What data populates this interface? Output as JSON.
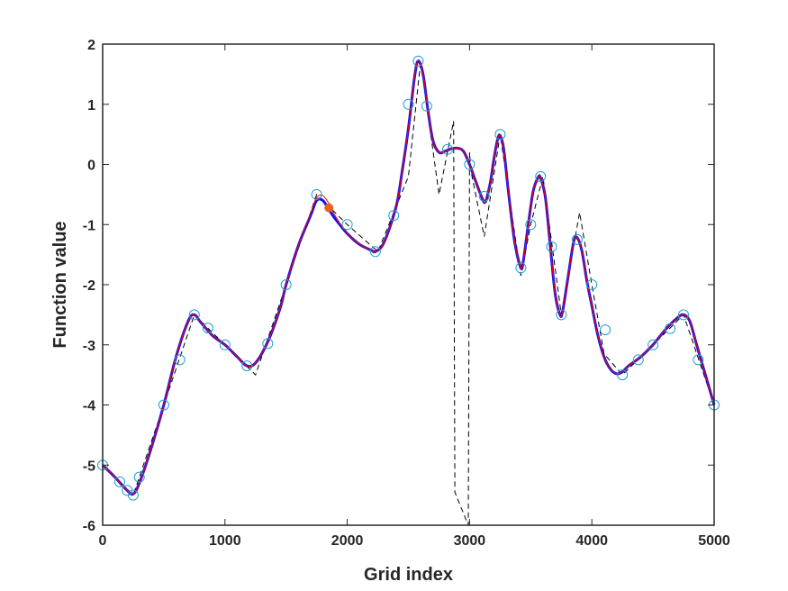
{
  "chart_data": {
    "type": "line",
    "title": "",
    "xlabel": "Grid index",
    "ylabel": "Function value",
    "xlim": [
      0,
      5000
    ],
    "ylim": [
      -6,
      2
    ],
    "xticks": [
      0,
      1000,
      2000,
      3000,
      4000,
      5000
    ],
    "yticks": [
      -6,
      -5,
      -4,
      -3,
      -2,
      -1,
      0,
      1,
      2
    ],
    "grid": false,
    "legend": "none",
    "colors": {
      "axis": "#262626",
      "smooth_red": "#ff0000",
      "smooth_blue": "#1414e6",
      "dashed": "#000000",
      "markers": "#1f9fd4",
      "highlight": "#e8641e"
    },
    "series": [
      {
        "style": "red-thin-line",
        "x": [
          0,
          100,
          200,
          250,
          300,
          400,
          500,
          600,
          700,
          750,
          800,
          900,
          1000,
          1100,
          1180,
          1250,
          1350,
          1450,
          1500,
          1600,
          1700,
          1750,
          1800,
          1850,
          1900,
          2000,
          2100,
          2200,
          2230,
          2300,
          2400,
          2450,
          2500,
          2550,
          2580,
          2620,
          2660,
          2700,
          2750,
          2800,
          2850,
          2900,
          2950,
          3000,
          3050,
          3100,
          3130,
          3170,
          3200,
          3230,
          3250,
          3280,
          3320,
          3370,
          3420,
          3440,
          3480,
          3520,
          3560,
          3580,
          3620,
          3660,
          3700,
          3740,
          3760,
          3800,
          3850,
          3880,
          3920,
          3960,
          4000,
          4050,
          4100,
          4150,
          4200,
          4250,
          4300,
          4400,
          4500,
          4600,
          4700,
          4750,
          4800,
          4850,
          4900,
          4950,
          5000
        ],
        "values": [
          -5,
          -5.2,
          -5.42,
          -5.48,
          -5.3,
          -4.7,
          -4.0,
          -3.2,
          -2.6,
          -2.5,
          -2.62,
          -2.85,
          -3.0,
          -3.2,
          -3.35,
          -3.3,
          -2.95,
          -2.4,
          -2.0,
          -1.35,
          -0.82,
          -0.55,
          -0.52,
          -0.65,
          -0.85,
          -1.15,
          -1.33,
          -1.43,
          -1.45,
          -1.3,
          -0.7,
          -0.1,
          0.6,
          1.45,
          1.72,
          1.5,
          0.9,
          0.4,
          0.2,
          0.22,
          0.26,
          0.27,
          0.22,
          0.0,
          -0.28,
          -0.55,
          -0.62,
          -0.3,
          0.1,
          0.42,
          0.48,
          0.25,
          -0.5,
          -1.3,
          -1.72,
          -1.6,
          -1.0,
          -0.45,
          -0.22,
          -0.22,
          -0.55,
          -1.35,
          -2.15,
          -2.5,
          -2.45,
          -1.95,
          -1.3,
          -1.22,
          -1.45,
          -1.95,
          -2.35,
          -2.85,
          -3.2,
          -3.4,
          -3.48,
          -3.45,
          -3.35,
          -3.2,
          -3.0,
          -2.75,
          -2.55,
          -2.5,
          -2.6,
          -2.95,
          -3.3,
          -3.65,
          -4.0
        ]
      },
      {
        "style": "blue-thick-line",
        "x": [
          0,
          100,
          200,
          250,
          300,
          400,
          500,
          600,
          700,
          750,
          800,
          900,
          1000,
          1100,
          1180,
          1250,
          1350,
          1450,
          1500,
          1600,
          1700,
          1750,
          1800,
          1850,
          1900,
          2000,
          2100,
          2200,
          2230,
          2300,
          2400,
          2450,
          2500,
          2550,
          2580,
          2620,
          2660,
          2700,
          2750,
          2800,
          2850,
          2900,
          2950,
          3000,
          3050,
          3100,
          3130,
          3170,
          3200,
          3230,
          3250,
          3280,
          3320,
          3370,
          3420,
          3440,
          3480,
          3520,
          3560,
          3580,
          3620,
          3660,
          3700,
          3740,
          3760,
          3800,
          3850,
          3880,
          3920,
          3960,
          4000,
          4050,
          4100,
          4150,
          4200,
          4250,
          4300,
          4400,
          4500,
          4600,
          4700,
          4750,
          4800,
          4850,
          4900,
          4950,
          5000
        ],
        "values": [
          -5,
          -5.2,
          -5.42,
          -5.48,
          -5.3,
          -4.7,
          -4.0,
          -3.2,
          -2.6,
          -2.5,
          -2.62,
          -2.85,
          -3.0,
          -3.2,
          -3.35,
          -3.3,
          -2.95,
          -2.4,
          -2.0,
          -1.35,
          -0.85,
          -0.6,
          -0.6,
          -0.75,
          -0.9,
          -1.15,
          -1.33,
          -1.43,
          -1.45,
          -1.3,
          -0.7,
          -0.1,
          0.6,
          1.45,
          1.72,
          1.5,
          0.9,
          0.4,
          0.2,
          0.22,
          0.26,
          0.27,
          0.22,
          0.0,
          -0.28,
          -0.55,
          -0.62,
          -0.3,
          0.1,
          0.42,
          0.48,
          0.25,
          -0.5,
          -1.3,
          -1.72,
          -1.6,
          -1.0,
          -0.45,
          -0.22,
          -0.22,
          -0.55,
          -1.35,
          -2.15,
          -2.5,
          -2.45,
          -1.95,
          -1.3,
          -1.22,
          -1.45,
          -1.95,
          -2.35,
          -2.85,
          -3.2,
          -3.4,
          -3.48,
          -3.45,
          -3.35,
          -3.2,
          -3.0,
          -2.75,
          -2.55,
          -2.5,
          -2.6,
          -2.95,
          -3.3,
          -3.65,
          -4.0
        ]
      },
      {
        "style": "black-dashed-line",
        "x": [
          0,
          250,
          500,
          750,
          1000,
          1250,
          1500,
          1750,
          2000,
          2250,
          2500,
          2600,
          2750,
          2870,
          2880,
          2990,
          3000,
          3010,
          3120,
          3250,
          3420,
          3500,
          3600,
          3750,
          3900,
          4000,
          4100,
          4250,
          4500,
          4750,
          5000
        ],
        "values": [
          -5,
          -5.5,
          -4.0,
          -2.5,
          -3.0,
          -3.5,
          -2.0,
          -0.5,
          -1.0,
          -1.45,
          -0.2,
          1.72,
          -0.5,
          0.72,
          -5.45,
          -6.0,
          0.2,
          -0.1,
          -1.2,
          0.5,
          -1.85,
          -1.0,
          -0.2,
          -2.5,
          -0.8,
          -2.0,
          -3.15,
          -3.5,
          -3.0,
          -2.5,
          -4.0
        ]
      },
      {
        "style": "circle-markers",
        "x": [
          0,
          140,
          200,
          250,
          300,
          500,
          630,
          750,
          860,
          1000,
          1180,
          1350,
          1500,
          1750,
          2000,
          2230,
          2380,
          2500,
          2580,
          2650,
          2820,
          3000,
          3120,
          3250,
          3420,
          3500,
          3580,
          3670,
          3750,
          3880,
          4000,
          4110,
          4250,
          4380,
          4500,
          4640,
          4750,
          4870,
          5000
        ],
        "values": [
          -5,
          -5.28,
          -5.42,
          -5.5,
          -5.2,
          -4.0,
          -3.25,
          -2.5,
          -2.72,
          -3.0,
          -3.35,
          -2.98,
          -2.0,
          -0.5,
          -1.0,
          -1.45,
          -0.85,
          1.0,
          1.72,
          0.97,
          0.25,
          0.0,
          -0.53,
          0.5,
          -1.72,
          -1.0,
          -0.2,
          -1.37,
          -2.5,
          -1.25,
          -2.0,
          -2.75,
          -3.5,
          -3.25,
          -3.0,
          -2.73,
          -2.5,
          -3.25,
          -4.0
        ]
      },
      {
        "style": "highlight-point",
        "x": [
          1850
        ],
        "values": [
          -0.72
        ]
      }
    ]
  }
}
